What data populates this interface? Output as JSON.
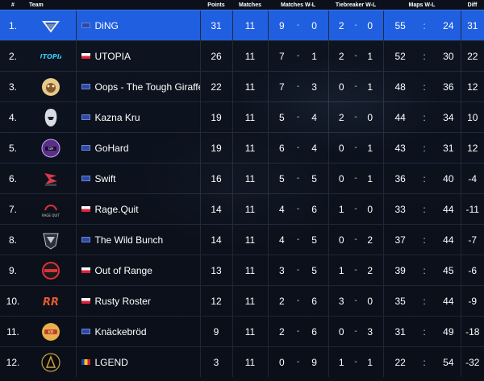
{
  "headers": {
    "rank": "#",
    "team": "Team",
    "points": "Points",
    "matches": "Matches",
    "matches_wl": "Matches W-L",
    "tiebreaker_wl": "Tiebreaker W-L",
    "maps_wl": "Maps W-L",
    "diff": "Diff"
  },
  "separators": {
    "dash": "-",
    "colon": ":"
  },
  "highlight_color": "#1f5fe0",
  "rows": [
    {
      "rank": "1.",
      "logo": "ding-logo-icon",
      "flag": "eu-flag-icon",
      "name": "DiNG",
      "points": "31",
      "matches": "11",
      "mw": "9",
      "ml": "0",
      "tw": "2",
      "tl": "0",
      "mapw": "55",
      "mapl": "24",
      "diff": "31"
    },
    {
      "rank": "2.",
      "logo": "utopia-logo-icon",
      "flag": "poland-flag-icon",
      "name": "UTOPIA",
      "points": "26",
      "matches": "11",
      "mw": "7",
      "ml": "1",
      "tw": "2",
      "tl": "1",
      "mapw": "52",
      "mapl": "30",
      "diff": "22"
    },
    {
      "rank": "3.",
      "logo": "giraffe-logo-icon",
      "flag": "eu-flag-icon",
      "name": "Oops - The Tough Giraffe",
      "points": "22",
      "matches": "11",
      "mw": "7",
      "ml": "3",
      "tw": "0",
      "tl": "1",
      "mapw": "48",
      "mapl": "36",
      "diff": "12"
    },
    {
      "rank": "4.",
      "logo": "kazna-kru-logo-icon",
      "flag": "eu-flag-icon",
      "name": "Kazna Kru",
      "points": "19",
      "matches": "11",
      "mw": "5",
      "ml": "4",
      "tw": "2",
      "tl": "0",
      "mapw": "44",
      "mapl": "34",
      "diff": "10"
    },
    {
      "rank": "5.",
      "logo": "gohard-logo-icon",
      "flag": "eu-flag-icon",
      "name": "GoHard",
      "points": "19",
      "matches": "11",
      "mw": "6",
      "ml": "4",
      "tw": "0",
      "tl": "1",
      "mapw": "43",
      "mapl": "31",
      "diff": "12"
    },
    {
      "rank": "6.",
      "logo": "swift-logo-icon",
      "flag": "eu-flag-icon",
      "name": "Swift",
      "points": "16",
      "matches": "11",
      "mw": "5",
      "ml": "5",
      "tw": "0",
      "tl": "1",
      "mapw": "36",
      "mapl": "40",
      "diff": "-4"
    },
    {
      "rank": "7.",
      "logo": "rage-quit-logo-icon",
      "flag": "poland-flag-icon",
      "name": "Rage.Quit",
      "points": "14",
      "matches": "11",
      "mw": "4",
      "ml": "6",
      "tw": "1",
      "tl": "0",
      "mapw": "33",
      "mapl": "44",
      "diff": "-11"
    },
    {
      "rank": "8.",
      "logo": "wild-bunch-logo-icon",
      "flag": "eu-flag-icon",
      "name": "The Wild Bunch",
      "points": "14",
      "matches": "11",
      "mw": "4",
      "ml": "5",
      "tw": "0",
      "tl": "2",
      "mapw": "37",
      "mapl": "44",
      "diff": "-7"
    },
    {
      "rank": "9.",
      "logo": "out-of-range-logo-icon",
      "flag": "poland-flag-icon",
      "name": "Out of Range",
      "points": "13",
      "matches": "11",
      "mw": "3",
      "ml": "5",
      "tw": "1",
      "tl": "2",
      "mapw": "39",
      "mapl": "45",
      "diff": "-6"
    },
    {
      "rank": "10.",
      "logo": "rusty-roster-logo-icon",
      "flag": "poland-flag-icon",
      "name": "Rusty Roster",
      "points": "12",
      "matches": "11",
      "mw": "2",
      "ml": "6",
      "tw": "3",
      "tl": "0",
      "mapw": "35",
      "mapl": "44",
      "diff": "-9"
    },
    {
      "rank": "11.",
      "logo": "knackebrod-logo-icon",
      "flag": "eu-flag-icon",
      "name": "Knäckebröd",
      "points": "9",
      "matches": "11",
      "mw": "2",
      "ml": "6",
      "tw": "0",
      "tl": "3",
      "mapw": "31",
      "mapl": "49",
      "diff": "-18"
    },
    {
      "rank": "12.",
      "logo": "lgend-logo-icon",
      "flag": "romania-flag-icon",
      "name": "LGEND",
      "points": "3",
      "matches": "11",
      "mw": "0",
      "ml": "9",
      "tw": "1",
      "tl": "1",
      "mapw": "22",
      "mapl": "54",
      "diff": "-32"
    }
  ]
}
